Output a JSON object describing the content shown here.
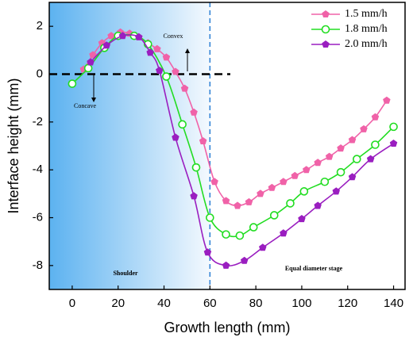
{
  "chart_data": {
    "type": "line",
    "x_label": "Growth length (mm)",
    "y_label": "Interface height (mm)",
    "xlim": [
      -10,
      145
    ],
    "ylim": [
      -9,
      3
    ],
    "xticks": [
      0,
      20,
      40,
      60,
      80,
      100,
      120,
      140
    ],
    "yticks": [
      -8,
      -6,
      -4,
      -2,
      0,
      2
    ],
    "reference_lines": {
      "y": 0,
      "x": 60
    },
    "annotations": [
      "Convex",
      "Concave",
      "Shoulder",
      "Equal diameter stage"
    ],
    "series": [
      {
        "name": "1.5 mm/h",
        "color": "#f062a8",
        "marker": "pentagon",
        "x": [
          5,
          9,
          13,
          17,
          21,
          25,
          29,
          33,
          37,
          41,
          45,
          49,
          53,
          57,
          62,
          67,
          72,
          77,
          82,
          87,
          92,
          97,
          102,
          107,
          112,
          117,
          122,
          127,
          132,
          137
        ],
        "values": [
          0.2,
          0.8,
          1.3,
          1.6,
          1.75,
          1.7,
          1.55,
          1.3,
          1.05,
          0.7,
          0.1,
          -0.6,
          -1.6,
          -2.8,
          -4.5,
          -5.3,
          -5.5,
          -5.35,
          -5.0,
          -4.75,
          -4.5,
          -4.25,
          -4.0,
          -3.7,
          -3.45,
          -3.1,
          -2.75,
          -2.3,
          -1.8,
          -1.1
        ]
      },
      {
        "name": "1.8 mm/h",
        "color": "#22dd22",
        "marker": "circle",
        "x": [
          0,
          7,
          14,
          20,
          27,
          33,
          41,
          48,
          54,
          60,
          67,
          73,
          79,
          88,
          95,
          101,
          110,
          117,
          124,
          132,
          140
        ],
        "values": [
          -0.4,
          0.25,
          1.1,
          1.6,
          1.6,
          1.25,
          -0.1,
          -2.1,
          -3.9,
          -6.0,
          -6.7,
          -6.75,
          -6.4,
          -5.9,
          -5.4,
          -4.9,
          -4.5,
          -4.1,
          -3.55,
          -2.95,
          -2.2
        ]
      },
      {
        "name": "2.0 mm/h",
        "color": "#9a1ec0",
        "marker": "pentagon",
        "x": [
          8,
          15,
          22,
          29,
          34,
          38,
          45,
          53,
          59,
          67,
          75,
          83,
          92,
          100,
          107,
          115,
          122,
          130,
          140
        ],
        "values": [
          0.5,
          1.2,
          1.6,
          1.55,
          0.9,
          0.15,
          -2.65,
          -5.1,
          -7.45,
          -8.0,
          -7.8,
          -7.25,
          -6.65,
          -6.05,
          -5.5,
          -4.9,
          -4.3,
          -3.55,
          -2.9
        ]
      }
    ]
  }
}
